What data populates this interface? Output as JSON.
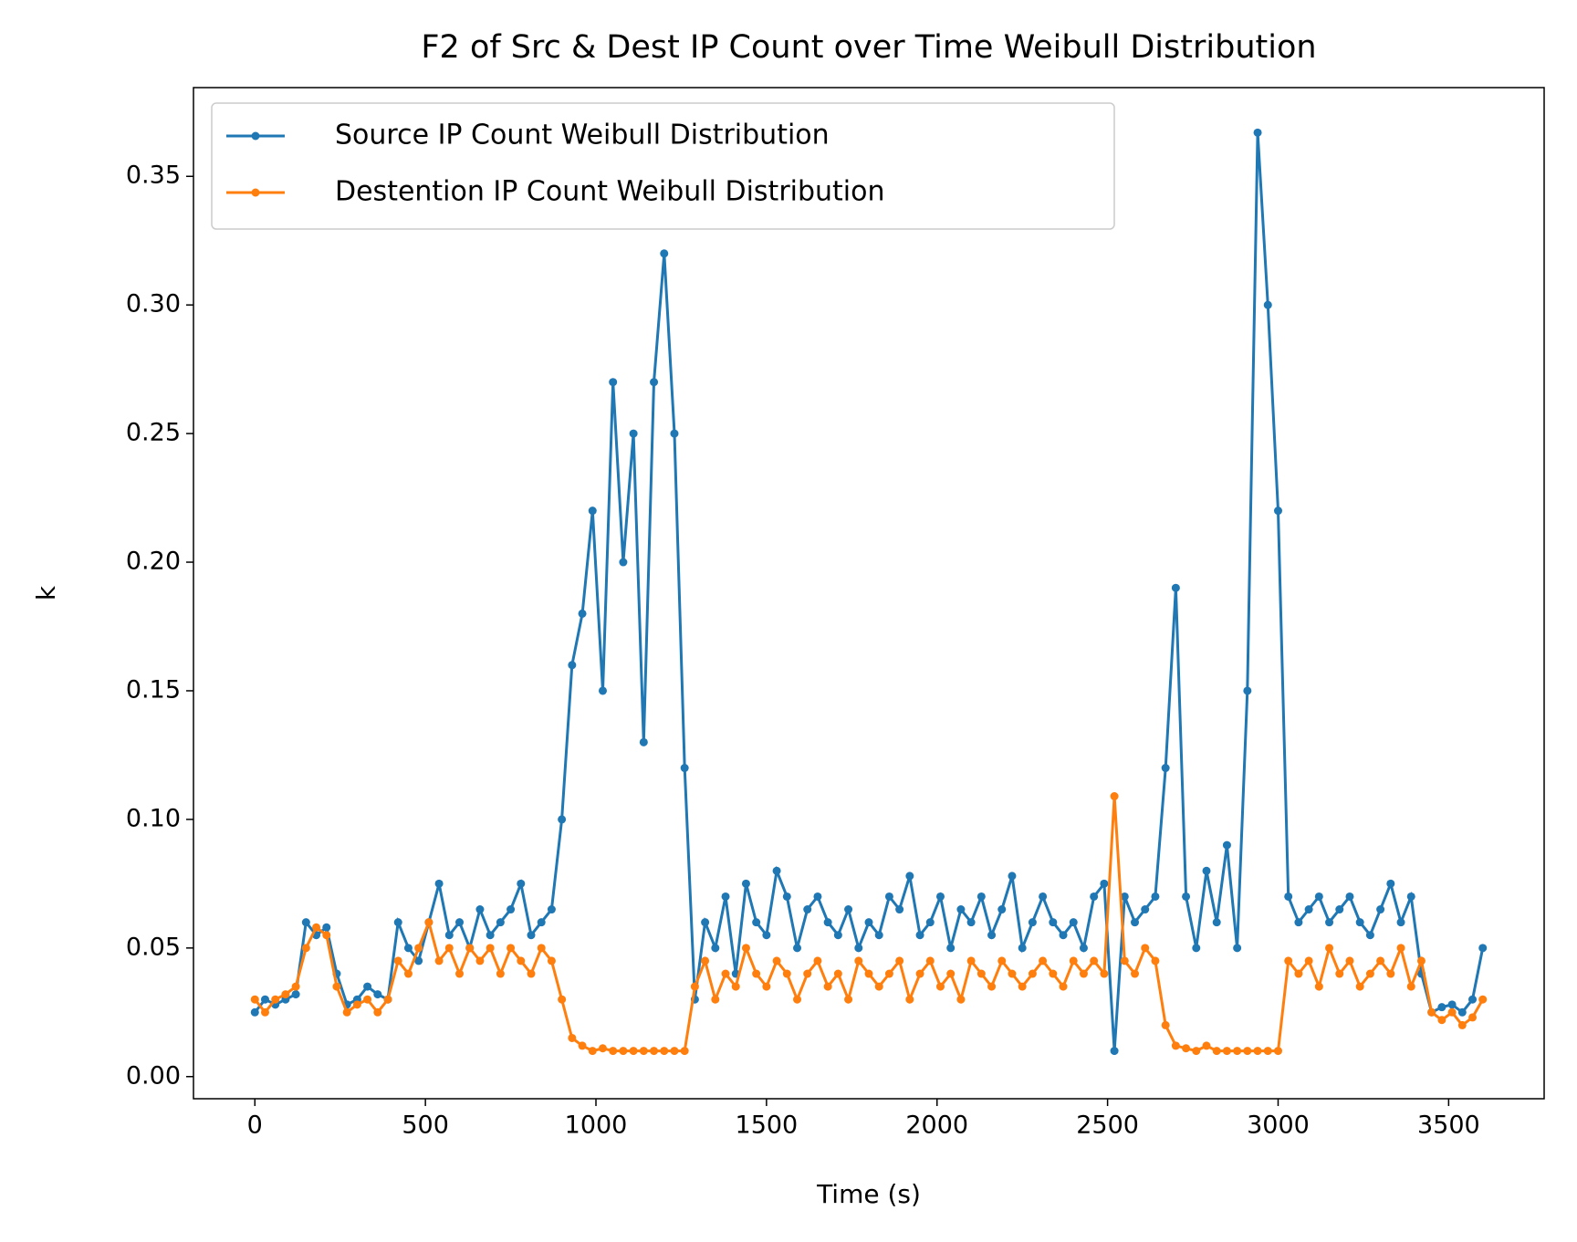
{
  "chart_data": {
    "type": "line",
    "title": "F2 of Src & Dest IP Count over Time Weibull Distribution",
    "x_label": "Time (s)",
    "y_label": "k",
    "x": [
      0,
      30,
      60,
      90,
      120,
      150,
      180,
      210,
      240,
      270,
      300,
      330,
      360,
      390,
      420,
      450,
      480,
      510,
      540,
      570,
      600,
      630,
      660,
      690,
      720,
      750,
      780,
      810,
      840,
      870,
      900,
      930,
      960,
      990,
      1020,
      1050,
      1080,
      1110,
      1140,
      1170,
      1200,
      1230,
      1260,
      1290,
      1320,
      1350,
      1380,
      1410,
      1440,
      1470,
      1500,
      1530,
      1560,
      1590,
      1620,
      1650,
      1680,
      1710,
      1740,
      1770,
      1800,
      1830,
      1860,
      1890,
      1920,
      1950,
      1980,
      2010,
      2040,
      2070,
      2100,
      2130,
      2160,
      2190,
      2220,
      2250,
      2280,
      2310,
      2340,
      2370,
      2400,
      2430,
      2460,
      2490,
      2520,
      2550,
      2580,
      2610,
      2640,
      2670,
      2700,
      2730,
      2760,
      2790,
      2820,
      2850,
      2880,
      2910,
      2940,
      2970,
      3000,
      3030,
      3060,
      3090,
      3120,
      3150,
      3180,
      3210,
      3240,
      3270,
      3300,
      3330,
      3360,
      3390,
      3420,
      3450,
      3480,
      3510,
      3540,
      3570,
      3600
    ],
    "series": [
      {
        "name": "Source IP Count Weibull Distribution",
        "color": "#1f77b4",
        "values": [
          0.025,
          0.03,
          0.028,
          0.03,
          0.032,
          0.06,
          0.055,
          0.058,
          0.04,
          0.028,
          0.03,
          0.035,
          0.032,
          0.03,
          0.06,
          0.05,
          0.045,
          0.06,
          0.075,
          0.055,
          0.06,
          0.05,
          0.065,
          0.055,
          0.06,
          0.065,
          0.075,
          0.055,
          0.06,
          0.065,
          0.1,
          0.16,
          0.18,
          0.22,
          0.15,
          0.27,
          0.2,
          0.25,
          0.13,
          0.27,
          0.32,
          0.25,
          0.12,
          0.03,
          0.06,
          0.05,
          0.07,
          0.04,
          0.075,
          0.06,
          0.055,
          0.08,
          0.07,
          0.05,
          0.065,
          0.07,
          0.06,
          0.055,
          0.065,
          0.05,
          0.06,
          0.055,
          0.07,
          0.065,
          0.078,
          0.055,
          0.06,
          0.07,
          0.05,
          0.065,
          0.06,
          0.07,
          0.055,
          0.065,
          0.078,
          0.05,
          0.06,
          0.07,
          0.06,
          0.055,
          0.06,
          0.05,
          0.07,
          0.075,
          0.01,
          0.07,
          0.06,
          0.065,
          0.07,
          0.12,
          0.19,
          0.07,
          0.05,
          0.08,
          0.06,
          0.09,
          0.05,
          0.15,
          0.367,
          0.3,
          0.22,
          0.07,
          0.06,
          0.065,
          0.07,
          0.06,
          0.065,
          0.07,
          0.06,
          0.055,
          0.065,
          0.075,
          0.06,
          0.07,
          0.04,
          0.025,
          0.027,
          0.028,
          0.025,
          0.03,
          0.05
        ]
      },
      {
        "name": "Destention IP Count Weibull Distribution",
        "color": "#ff7f0e",
        "values": [
          0.03,
          0.025,
          0.03,
          0.032,
          0.035,
          0.05,
          0.058,
          0.055,
          0.035,
          0.025,
          0.028,
          0.03,
          0.025,
          0.03,
          0.045,
          0.04,
          0.05,
          0.06,
          0.045,
          0.05,
          0.04,
          0.05,
          0.045,
          0.05,
          0.04,
          0.05,
          0.045,
          0.04,
          0.05,
          0.045,
          0.03,
          0.015,
          0.012,
          0.01,
          0.011,
          0.01,
          0.01,
          0.01,
          0.01,
          0.01,
          0.01,
          0.01,
          0.01,
          0.035,
          0.045,
          0.03,
          0.04,
          0.035,
          0.05,
          0.04,
          0.035,
          0.045,
          0.04,
          0.03,
          0.04,
          0.045,
          0.035,
          0.04,
          0.03,
          0.045,
          0.04,
          0.035,
          0.04,
          0.045,
          0.03,
          0.04,
          0.045,
          0.035,
          0.04,
          0.03,
          0.045,
          0.04,
          0.035,
          0.045,
          0.04,
          0.035,
          0.04,
          0.045,
          0.04,
          0.035,
          0.045,
          0.04,
          0.045,
          0.04,
          0.109,
          0.045,
          0.04,
          0.05,
          0.045,
          0.02,
          0.012,
          0.011,
          0.01,
          0.012,
          0.01,
          0.01,
          0.01,
          0.01,
          0.01,
          0.01,
          0.01,
          0.045,
          0.04,
          0.045,
          0.035,
          0.05,
          0.04,
          0.045,
          0.035,
          0.04,
          0.045,
          0.04,
          0.05,
          0.035,
          0.045,
          0.025,
          0.022,
          0.025,
          0.02,
          0.023,
          0.03
        ]
      }
    ],
    "xlim": [
      -180,
      3780
    ],
    "xticks": [
      0,
      500,
      1000,
      1500,
      2000,
      2500,
      3000,
      3500
    ],
    "ylim": [
      -0.0086,
      0.3845
    ],
    "yticks": [
      {
        "value": 0,
        "label": "0.00"
      },
      {
        "value": 0.05,
        "label": "0.05"
      },
      {
        "value": 0.1,
        "label": "0.10"
      },
      {
        "value": 0.15,
        "label": "0.15"
      },
      {
        "value": 0.2,
        "label": "0.20"
      },
      {
        "value": 0.25,
        "label": "0.25"
      },
      {
        "value": 0.3,
        "label": "0.30"
      },
      {
        "value": 0.35,
        "label": "0.35"
      }
    ],
    "legend": "upper left",
    "grid": false
  }
}
